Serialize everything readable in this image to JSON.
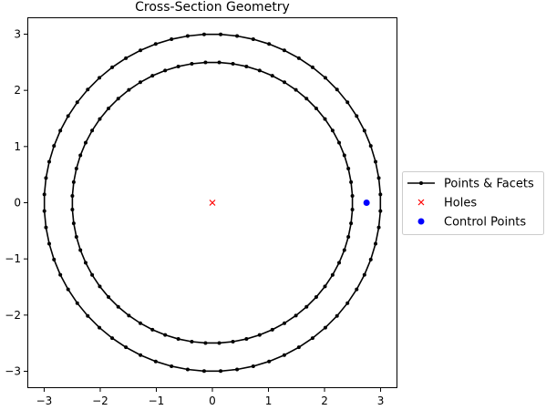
{
  "chart_data": {
    "type": "line",
    "title": "Cross-Section Geometry",
    "xlabel": "",
    "ylabel": "",
    "xlim": [
      -3.3,
      3.3
    ],
    "ylim": [
      -3.3,
      3.3
    ],
    "xticks": [
      -3,
      -2,
      -1,
      0,
      1,
      2,
      3
    ],
    "yticks": [
      -3,
      -2,
      -1,
      0,
      1,
      2,
      3
    ],
    "xtick_labels": [
      "−3",
      "−2",
      "−1",
      "0",
      "1",
      "2",
      "3"
    ],
    "ytick_labels": [
      "−3",
      "−2",
      "−1",
      "0",
      "1",
      "2",
      "3"
    ],
    "grid": false,
    "legend": {
      "position": "center-right",
      "entries": [
        "Points & Facets",
        "Holes",
        "Control Points"
      ]
    },
    "series": [
      {
        "name": "Points & Facets",
        "kind": "closed-polygons",
        "color": "#000000",
        "rings": [
          {
            "radius": 3.0,
            "n_points": 64
          },
          {
            "radius": 2.5,
            "n_points": 64
          }
        ]
      },
      {
        "name": "Holes",
        "kind": "scatter",
        "marker": "x",
        "color": "#ff0000",
        "points": [
          [
            0,
            0
          ]
        ]
      },
      {
        "name": "Control Points",
        "kind": "scatter",
        "marker": "circle",
        "color": "#0000ff",
        "points": [
          [
            2.75,
            0
          ]
        ]
      }
    ]
  }
}
